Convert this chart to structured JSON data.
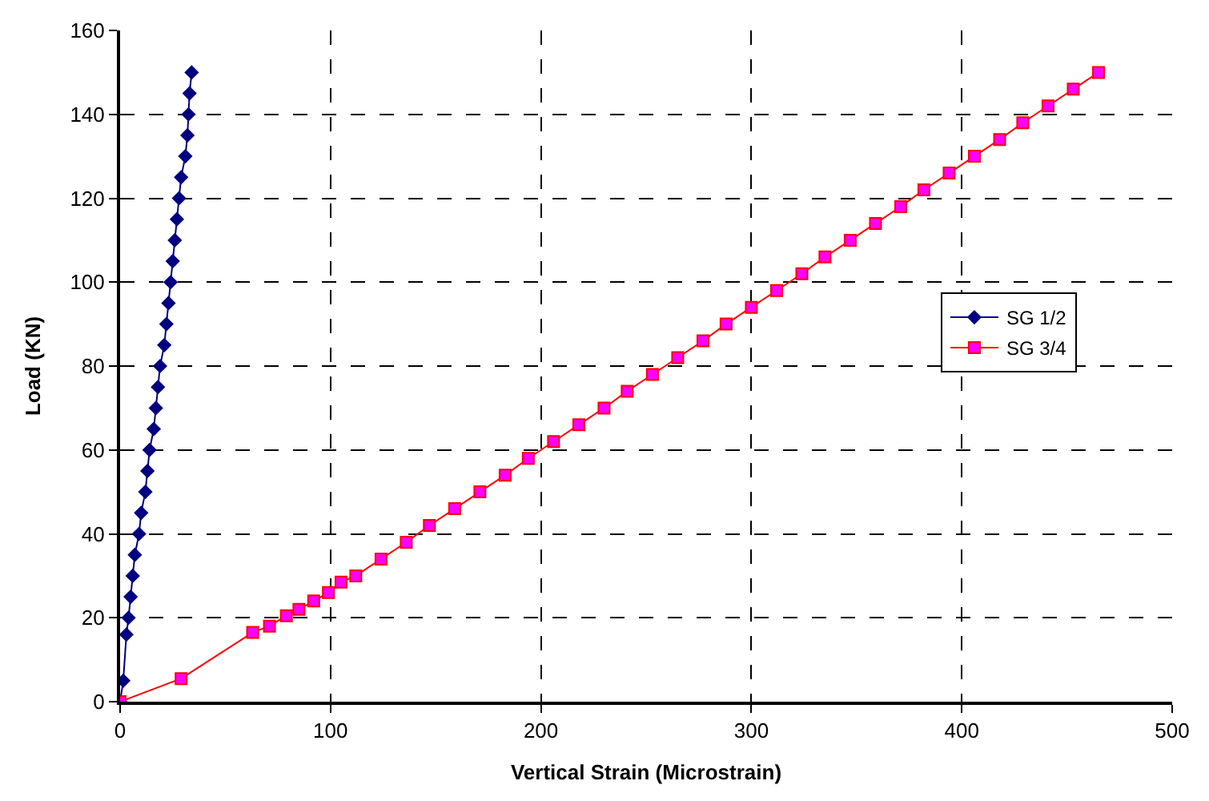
{
  "chart_data": {
    "type": "line",
    "xlabel": "Vertical Strain (Microstrain)",
    "ylabel": "Load (KN)",
    "xlim": [
      0,
      500
    ],
    "xticks": [
      0,
      100,
      200,
      300,
      400,
      500
    ],
    "ylim": [
      0,
      160
    ],
    "yticks": [
      0,
      20,
      40,
      60,
      80,
      100,
      120,
      140,
      160
    ],
    "grid": true,
    "legend": "right",
    "line_style": "solid",
    "series": [
      {
        "name": "SG 1/2",
        "color": "#000080",
        "marker": "diamond",
        "x": [
          0,
          1.5,
          3,
          4,
          5,
          6,
          7,
          9,
          10,
          12,
          13,
          14,
          16,
          17,
          18,
          19,
          21,
          22,
          23,
          24,
          25,
          26,
          27,
          28,
          29,
          31,
          32,
          32.5,
          33,
          34
        ],
        "values": [
          0,
          5,
          16,
          20,
          25,
          30,
          35,
          40,
          45,
          50,
          55,
          60,
          65,
          70,
          75,
          80,
          85,
          90,
          95,
          100,
          105,
          110,
          115,
          120,
          125,
          130,
          135,
          140,
          145,
          150
        ]
      },
      {
        "name": "SG 3/4",
        "color": "#ff0000",
        "marker": "square",
        "x": [
          0,
          29,
          63,
          71,
          79,
          85,
          92,
          99,
          105,
          112,
          124,
          136,
          147,
          159,
          171,
          183,
          194,
          206,
          218,
          230,
          241,
          253,
          265,
          277,
          288,
          300,
          312,
          324,
          335,
          347,
          359,
          371,
          382,
          394,
          406,
          418,
          429,
          441,
          453,
          465
        ],
        "values": [
          0,
          5.5,
          16.5,
          18,
          20.5,
          22,
          24,
          26,
          28.5,
          30,
          34,
          38,
          42,
          46,
          50,
          54,
          58,
          62,
          66,
          70,
          74,
          78,
          82,
          86,
          90,
          94,
          98,
          102,
          106,
          110,
          114,
          118,
          122,
          126,
          130,
          134,
          138,
          142,
          146,
          150
        ]
      }
    ]
  }
}
